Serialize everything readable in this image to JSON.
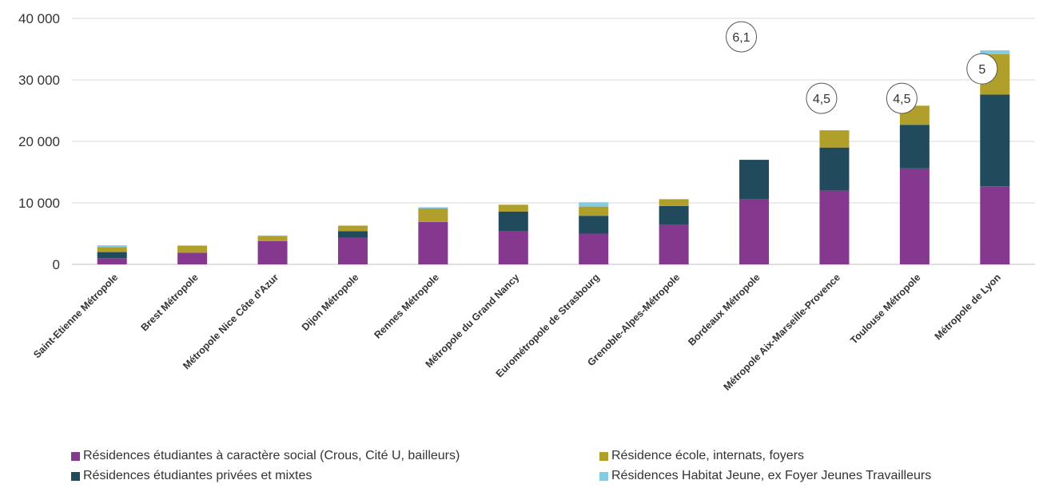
{
  "chart_data": {
    "type": "bar",
    "stacked": true,
    "categories": [
      "Saint-Etienne Métropole",
      "Brest Métropole",
      "Métropole Nice Côte d'Azur",
      "Dijon Métropole",
      "Rennes Métropole",
      "Métropole du Grand Nancy",
      "Eurométropole de Strasbourg",
      "Grenoble-Alpes-Métropole",
      "Bordeaux Métropole",
      "Métropole Aix-Marseille-Provence",
      "Toulouse Métropole",
      "Métropole de Lyon"
    ],
    "series": [
      {
        "name": "Résidences étudiantes à caractère social (Crous, Cité U, bailleurs)",
        "color": "#84398f",
        "values": [
          1000,
          1900,
          3800,
          4300,
          6900,
          5400,
          5000,
          6400,
          10600,
          12000,
          15600,
          12700
        ]
      },
      {
        "name": "Résidences étudiantes privées et mixtes",
        "color": "#214a5c",
        "values": [
          1000,
          0,
          0,
          1100,
          0,
          3200,
          2900,
          3100,
          6400,
          7000,
          7100,
          14900
        ]
      },
      {
        "name": "Résidence école, internats, foyers",
        "color": "#b09f2a",
        "values": [
          800,
          1100,
          800,
          900,
          2200,
          1100,
          1500,
          1100,
          0,
          2800,
          3100,
          6600
        ]
      },
      {
        "name": "Résidences Habitat Jeune, ex Foyer Jeunes Travailleurs",
        "color": "#86cbe4",
        "values": [
          300,
          100,
          100,
          0,
          200,
          0,
          700,
          0,
          0,
          0,
          0,
          600
        ]
      }
    ],
    "ylim": [
      0,
      40000
    ],
    "yticks": [
      0,
      10000,
      20000,
      30000,
      40000
    ],
    "ytick_labels": [
      "0",
      "10 000",
      "20 000",
      "30 000",
      "40 000"
    ],
    "grid": true,
    "legend_position": "bottom",
    "annotations": [
      {
        "text": "6,1",
        "category_index": 8,
        "y": 37000
      },
      {
        "text": "4,5",
        "category_index": 9,
        "y": 27000
      },
      {
        "text": "4,5",
        "category_index": 10,
        "y": 27000
      },
      {
        "text": "5",
        "category_index": 11,
        "y": 31800
      }
    ]
  }
}
